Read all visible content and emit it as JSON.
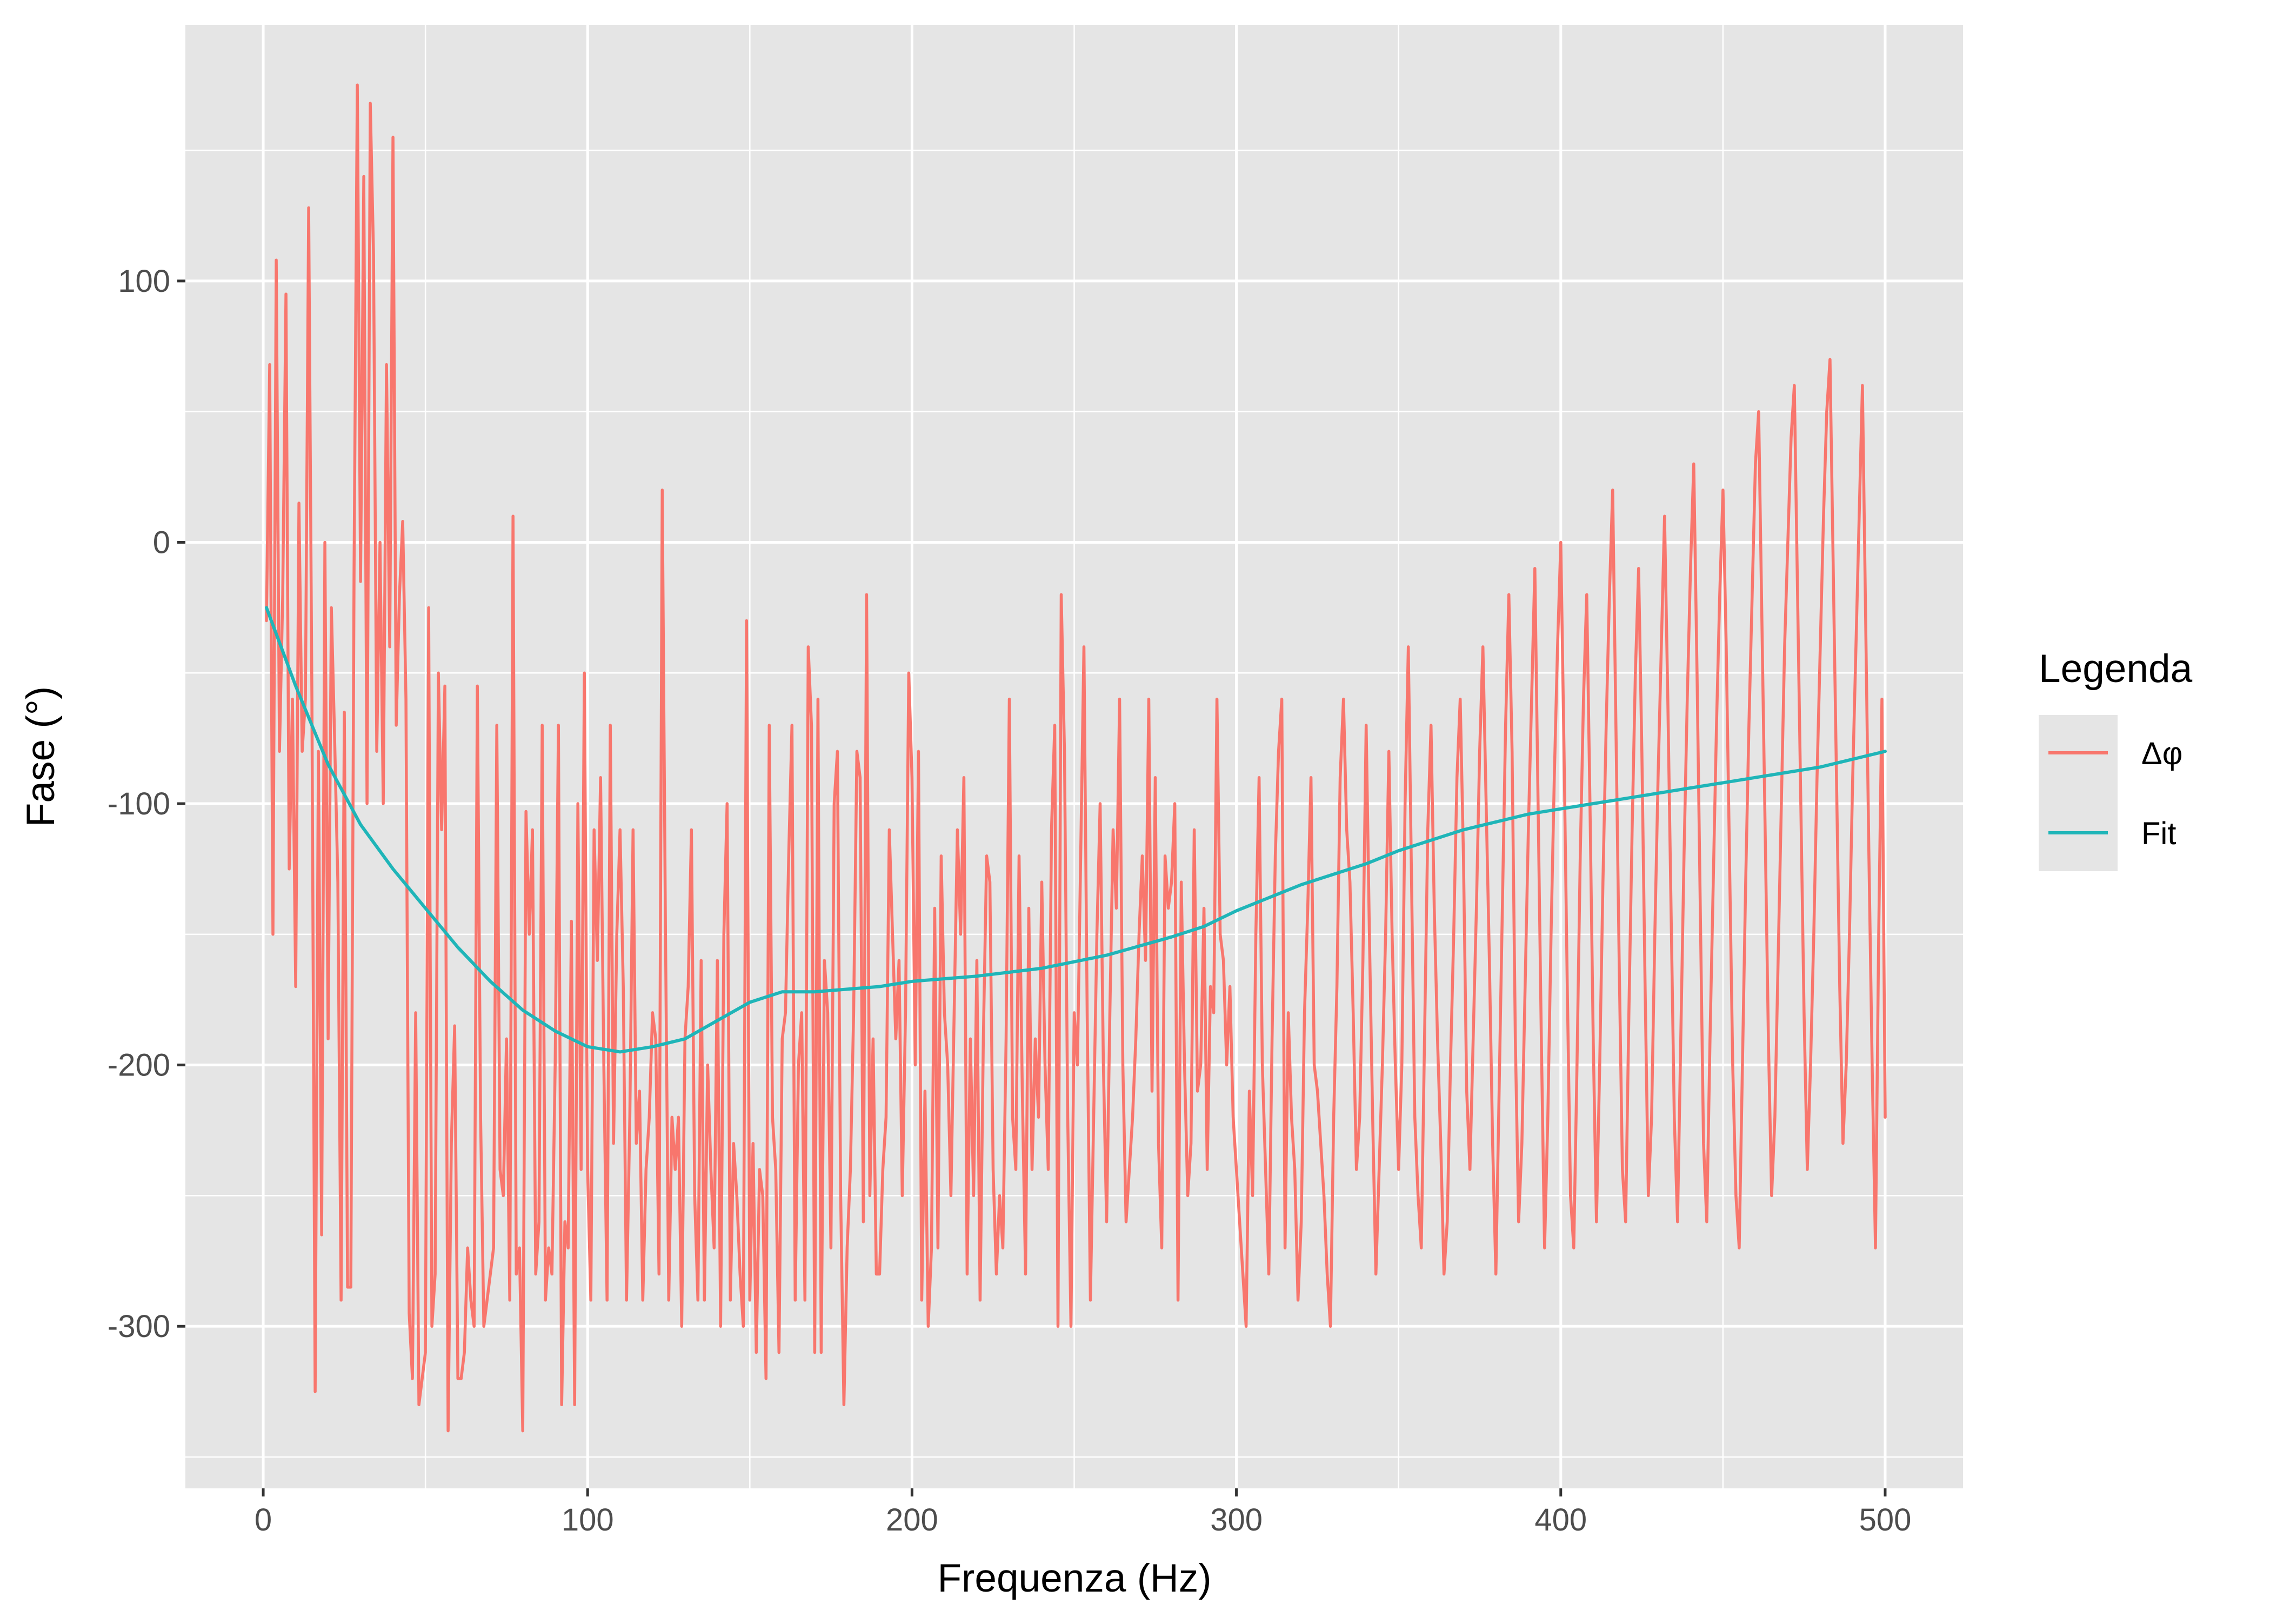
{
  "chart_data": {
    "type": "line",
    "xlabel": "Frequenza (Hz)",
    "ylabel": "Fase (°)",
    "xlim": [
      -24,
      524
    ],
    "ylim": [
      -362,
      198
    ],
    "x_ticks": [
      0,
      100,
      200,
      300,
      400,
      500
    ],
    "y_ticks": [
      100,
      0,
      -100,
      -200,
      -300
    ],
    "grid": true,
    "legend_position": "right",
    "legend": {
      "title": "Legenda",
      "items": [
        "Δφ",
        "Fit"
      ]
    },
    "colors": {
      "panel_background": "#e5e5e5",
      "grid": "#ffffff",
      "delta_phi": "#f8766d",
      "fit": "#1fb5b8"
    },
    "series": [
      {
        "name": "Δφ",
        "x_start": 1,
        "x_step": 1,
        "values": [
          -30,
          68,
          -150,
          108,
          -80,
          -20,
          95,
          -125,
          -60,
          -170,
          15,
          -80,
          -60,
          128,
          -60,
          -325,
          -80,
          -265,
          0,
          -190,
          -25,
          -75,
          -130,
          -290,
          -65,
          -285,
          -285,
          -10,
          175,
          -15,
          140,
          -100,
          168,
          110,
          -80,
          0,
          -100,
          68,
          -40,
          155,
          -70,
          -20,
          8,
          -60,
          -295,
          -320,
          -180,
          -330,
          -320,
          -310,
          -25,
          -300,
          -280,
          -50,
          -110,
          -55,
          -340,
          -230,
          -185,
          -320,
          -320,
          -310,
          -270,
          -290,
          -300,
          -55,
          -220,
          -300,
          -290,
          -280,
          -270,
          -70,
          -240,
          -250,
          -190,
          -290,
          10,
          -280,
          -270,
          -340,
          -103,
          -150,
          -110,
          -280,
          -260,
          -70,
          -290,
          -270,
          -280,
          -200,
          -70,
          -330,
          -260,
          -270,
          -145,
          -330,
          -100,
          -240,
          -50,
          -240,
          -290,
          -110,
          -160,
          -90,
          -200,
          -290,
          -70,
          -230,
          -150,
          -110,
          -170,
          -290,
          -220,
          -110,
          -230,
          -210,
          -290,
          -240,
          -220,
          -180,
          -190,
          -280,
          20,
          -150,
          -290,
          -220,
          -240,
          -220,
          -300,
          -190,
          -170,
          -110,
          -250,
          -290,
          -160,
          -290,
          -200,
          -240,
          -270,
          -160,
          -300,
          -150,
          -100,
          -290,
          -230,
          -250,
          -280,
          -300,
          -30,
          -290,
          -230,
          -310,
          -240,
          -250,
          -320,
          -70,
          -220,
          -240,
          -310,
          -190,
          -180,
          -120,
          -70,
          -290,
          -200,
          -180,
          -290,
          -40,
          -70,
          -310,
          -60,
          -310,
          -160,
          -180,
          -270,
          -100,
          -80,
          -250,
          -330,
          -270,
          -240,
          -180,
          -80,
          -90,
          -260,
          -20,
          -250,
          -190,
          -280,
          -280,
          -240,
          -220,
          -110,
          -150,
          -190,
          -160,
          -250,
          -180,
          -50,
          -90,
          -200,
          -80,
          -290,
          -210,
          -300,
          -270,
          -140,
          -270,
          -120,
          -180,
          -200,
          -250,
          -180,
          -110,
          -150,
          -90,
          -280,
          -190,
          -250,
          -160,
          -290,
          -190,
          -120,
          -130,
          -240,
          -280,
          -250,
          -270,
          -190,
          -60,
          -220,
          -240,
          -120,
          -210,
          -280,
          -140,
          -240,
          -190,
          -220,
          -130,
          -200,
          -240,
          -110,
          -70,
          -300,
          -20,
          -80,
          -220,
          -300,
          -180,
          -200,
          -120,
          -40,
          -180,
          -290,
          -220,
          -150,
          -100,
          -200,
          -260,
          -180,
          -110,
          -140,
          -60,
          -200,
          -260,
          -240,
          -220,
          -190,
          -150,
          -120,
          -160,
          -60,
          -210,
          -90,
          -230,
          -270,
          -120,
          -140,
          -130,
          -100,
          -290,
          -130,
          -200,
          -250,
          -230,
          -110,
          -210,
          -200,
          -140,
          -240,
          -170,
          -180,
          -60,
          -150,
          -160,
          -200,
          -170,
          -220,
          -240,
          -260,
          -280,
          -300,
          -210,
          -250,
          -150,
          -90,
          -200,
          -240,
          -280,
          -190,
          -120,
          -80,
          -60,
          -270,
          -180,
          -220,
          -240,
          -290,
          -260,
          -180,
          -140,
          -90,
          -200,
          -210,
          -230,
          -250,
          -280,
          -300,
          -220,
          -170,
          -90,
          -60,
          -110,
          -130,
          -180,
          -240,
          -220,
          -160,
          -70,
          -150,
          -220,
          -280,
          -240,
          -200,
          -150,
          -80,
          -150,
          -200,
          -240,
          -200,
          -100,
          -40,
          -130,
          -220,
          -250,
          -270,
          -190,
          -110,
          -70,
          -140,
          -190,
          -230,
          -280,
          -260,
          -200,
          -150,
          -90,
          -60,
          -120,
          -210,
          -240,
          -190,
          -140,
          -80,
          -40,
          -100,
          -160,
          -230,
          -280,
          -210,
          -140,
          -70,
          -20,
          -80,
          -190,
          -260,
          -230,
          -170,
          -110,
          -60,
          -10,
          -100,
          -190,
          -270,
          -220,
          -150,
          -90,
          -40,
          0,
          -80,
          -170,
          -250,
          -270,
          -200,
          -120,
          -60,
          -20,
          -100,
          -190,
          -260,
          -200,
          -130,
          -70,
          -20,
          20,
          -70,
          -160,
          -240,
          -260,
          -180,
          -110,
          -50,
          -10,
          -80,
          -170,
          -250,
          -220,
          -150,
          -90,
          -40,
          10,
          -60,
          -140,
          -220,
          -260,
          -190,
          -120,
          -60,
          -10,
          30,
          -50,
          -140,
          -230,
          -260,
          -190,
          -130,
          -70,
          -20,
          20,
          -40,
          -120,
          -200,
          -250,
          -270,
          -200,
          -130,
          -70,
          -20,
          30,
          50,
          -30,
          -110,
          -190,
          -250,
          -220,
          -160,
          -100,
          -40,
          0,
          40,
          60,
          -20,
          -100,
          -180,
          -240,
          -200,
          -150,
          -90,
          -40,
          10,
          50,
          70,
          -10,
          -90,
          -170,
          -230,
          -200,
          -150,
          -90,
          -40,
          10,
          60,
          -30,
          -120,
          -200,
          -270,
          -150,
          -60,
          -220
        ]
      },
      {
        "name": "Fit",
        "x": [
          1,
          10,
          20,
          30,
          40,
          50,
          60,
          70,
          80,
          90,
          100,
          110,
          120,
          130,
          140,
          150,
          160,
          170,
          180,
          190,
          200,
          220,
          240,
          260,
          280,
          290,
          300,
          310,
          320,
          330,
          340,
          350,
          360,
          370,
          380,
          390,
          400,
          410,
          420,
          430,
          440,
          450,
          460,
          470,
          480,
          490,
          500
        ],
        "values": [
          -25,
          -55,
          -85,
          -108,
          -125,
          -140,
          -155,
          -168,
          -179,
          -187,
          -193,
          -195,
          -193,
          -190,
          -183,
          -176,
          -172,
          -172,
          -171,
          -170,
          -168,
          -166,
          -163,
          -158,
          -151,
          -147,
          -141,
          -136,
          -131,
          -127,
          -123,
          -118,
          -114,
          -110,
          -107,
          -104,
          -102,
          -100,
          -98,
          -96,
          -94,
          -92,
          -90,
          -88,
          -86,
          -83,
          -80
        ]
      }
    ]
  }
}
